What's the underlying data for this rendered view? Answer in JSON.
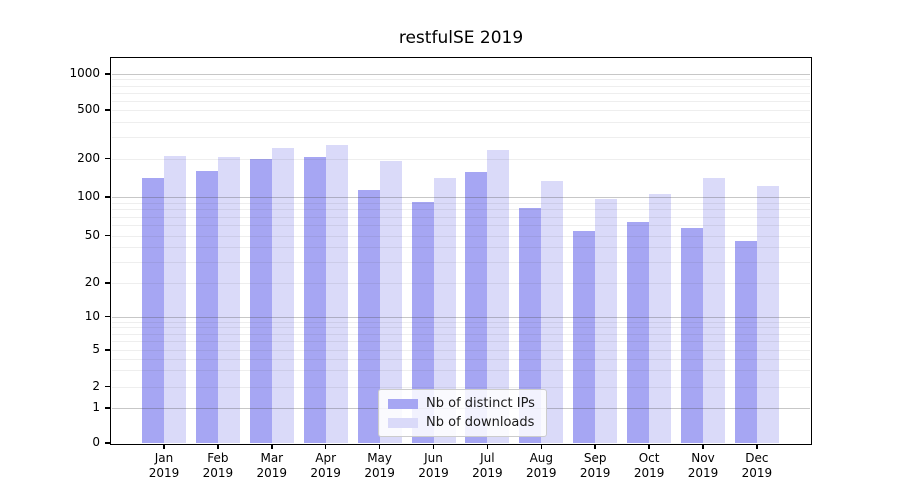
{
  "chart_data": {
    "type": "bar",
    "title": "restfulSE 2019",
    "categories": [
      "Jan 2019",
      "Feb 2019",
      "Mar 2019",
      "Apr 2019",
      "May 2019",
      "Jun 2019",
      "Jul 2019",
      "Aug 2019",
      "Sep 2019",
      "Oct 2019",
      "Nov 2019",
      "Dec 2019"
    ],
    "series": [
      {
        "name": "Nb of distinct IPs",
        "color": "#a6a6f3",
        "values": [
          140,
          159,
          199,
          204,
          113,
          91,
          158,
          82,
          54,
          64,
          57,
          45
        ]
      },
      {
        "name": "Nb of downloads",
        "color": "#dadaf9",
        "values": [
          209,
          205,
          242,
          258,
          190,
          140,
          236,
          134,
          97,
          106,
          141,
          121
        ]
      }
    ],
    "xlabel": "",
    "ylabel": "",
    "y_scale": "symlog",
    "y_ticks": [
      0,
      1,
      2,
      5,
      10,
      20,
      50,
      100,
      200,
      500,
      1000
    ],
    "y_minor_gridlines": [
      2,
      3,
      4,
      5,
      6,
      7,
      8,
      9,
      20,
      30,
      40,
      50,
      60,
      70,
      80,
      90,
      200,
      300,
      400,
      500,
      600,
      700,
      800,
      900
    ],
    "y_major_gridlines": [
      1,
      10,
      100,
      1000
    ],
    "ylim": [
      0,
      1320
    ],
    "grid": "horizontal, log minor + major",
    "legend_position": "lower center",
    "colors": {
      "axis": "#000000",
      "major_grid": "#bdbdbd",
      "minor_grid": "#eaeaea"
    }
  }
}
